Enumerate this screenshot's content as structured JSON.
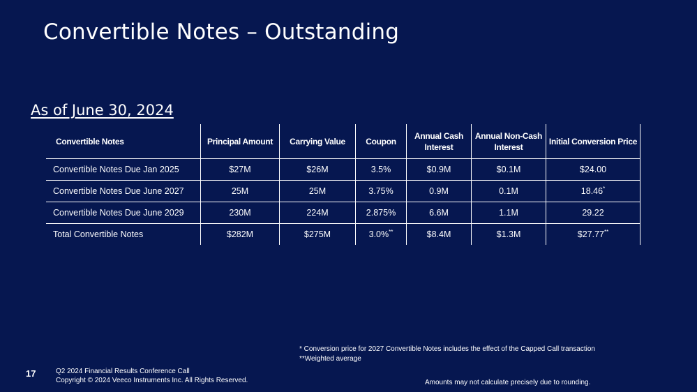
{
  "slide": {
    "title": "Convertible Notes – Outstanding",
    "as_of": "As of June 30, 2024",
    "page_number": "17"
  },
  "table": {
    "headers": [
      "Convertible Notes",
      "Principal Amount",
      "Carrying Value",
      "Coupon",
      "Annual Cash Interest",
      "Annual Non-Cash Interest",
      "Initial Conversion Price"
    ],
    "rows": [
      {
        "name": "Convertible Notes Due Jan 2025",
        "principal": "$27M",
        "carrying": "$26M",
        "coupon": "3.5%",
        "coupon_mark": "",
        "cash_interest": "$0.9M",
        "noncash_interest": "$0.1M",
        "conversion_price": "$24.00",
        "conversion_mark": ""
      },
      {
        "name": "Convertible Notes Due June 2027",
        "principal": "25M",
        "carrying": "25M",
        "coupon": "3.75%",
        "coupon_mark": "",
        "cash_interest": "0.9M",
        "noncash_interest": "0.1M",
        "conversion_price": "18.46",
        "conversion_mark": "*"
      },
      {
        "name": "Convertible Notes Due June 2029",
        "principal": "230M",
        "carrying": "224M",
        "coupon": "2.875%",
        "coupon_mark": "",
        "cash_interest": "6.6M",
        "noncash_interest": "1.1M",
        "conversion_price": "29.22",
        "conversion_mark": ""
      },
      {
        "name": "Total Convertible Notes",
        "principal": "$282M",
        "carrying": "$275M",
        "coupon": "3.0%",
        "coupon_mark": "**",
        "cash_interest": "$8.4M",
        "noncash_interest": "$1.3M",
        "conversion_price": "$27.77",
        "conversion_mark": "**"
      }
    ]
  },
  "footnotes": {
    "note1": "*  Conversion price for 2027 Convertible Notes includes the effect of the Capped Call transaction",
    "note2": "**Weighted average",
    "rounding": "Amounts may not calculate precisely due to rounding."
  },
  "footer": {
    "line1": "Q2 2024 Financial Results Conference Call",
    "line2": "Copyright © 2024 Veeco Instruments Inc. All Rights Reserved."
  }
}
